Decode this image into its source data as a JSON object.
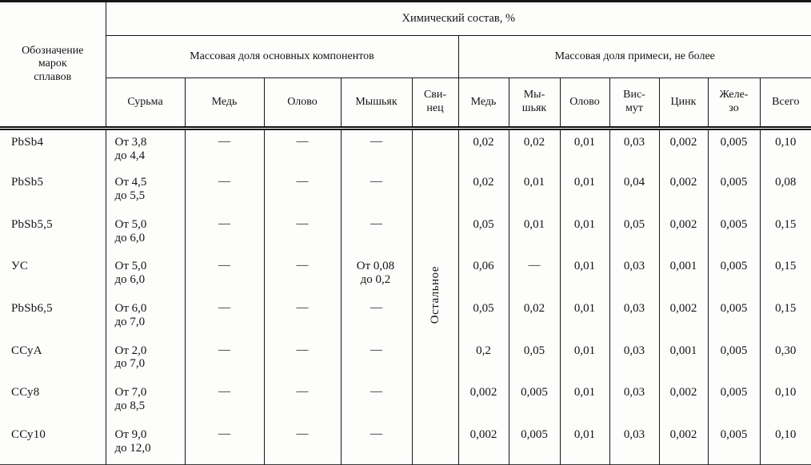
{
  "header": {
    "stub": "Обозначение\nмарок\nсплавов",
    "chem_title": "Химический состав, %",
    "group_main": "Массовая доля основных компонентов",
    "group_impurity": "Массовая доля примеси, не более",
    "cols_main": [
      "Сурьма",
      "Медь",
      "Олово",
      "Мышьяк",
      "Сви-\nнец"
    ],
    "cols_impurity": [
      "Медь",
      "Мы-\nшьяк",
      "Олово",
      "Вис-\nмут",
      "Цинк",
      "Желе-\nзо",
      "Всего"
    ]
  },
  "lead_remainder": "Остальное",
  "rows": [
    {
      "grade": "PbSb4",
      "antimony": "От 3,8\nдо 4,4",
      "copper": "—",
      "tin": "—",
      "arsenic": "—",
      "imp": [
        "0,02",
        "0,02",
        "0,01",
        "0,03",
        "0,002",
        "0,005",
        "0,10"
      ]
    },
    {
      "grade": "PbSb5",
      "antimony": "От 4,5\nдо 5,5",
      "copper": "—",
      "tin": "—",
      "arsenic": "—",
      "imp": [
        "0,02",
        "0,01",
        "0,01",
        "0,04",
        "0,002",
        "0,005",
        "0,08"
      ]
    },
    {
      "grade": "PbSb5,5",
      "antimony": "От 5,0\nдо 6,0",
      "copper": "—",
      "tin": "—",
      "arsenic": "—",
      "imp": [
        "0,05",
        "0,01",
        "0,01",
        "0,05",
        "0,002",
        "0,005",
        "0,15"
      ]
    },
    {
      "grade": "УС",
      "antimony": "От 5,0\nдо 6,0",
      "copper": "—",
      "tin": "—",
      "arsenic": "От 0,08\nдо 0,2",
      "imp": [
        "0,06",
        "—",
        "0,01",
        "0,03",
        "0,001",
        "0,005",
        "0,15"
      ]
    },
    {
      "grade": "PbSb6,5",
      "antimony": "От 6,0\nдо 7,0",
      "copper": "—",
      "tin": "—",
      "arsenic": "—",
      "imp": [
        "0,05",
        "0,02",
        "0,01",
        "0,03",
        "0,002",
        "0,005",
        "0,15"
      ]
    },
    {
      "grade": "ССуА",
      "antimony": "От 2,0\nдо 7,0",
      "copper": "—",
      "tin": "—",
      "arsenic": "—",
      "imp": [
        "0,2",
        "0,05",
        "0,01",
        "0,03",
        "0,001",
        "0,005",
        "0,30"
      ]
    },
    {
      "grade": "ССу8",
      "antimony": "От 7,0\nдо 8,5",
      "copper": "—",
      "tin": "—",
      "arsenic": "—",
      "imp": [
        "0,002",
        "0,005",
        "0,01",
        "0,03",
        "0,002",
        "0,005",
        "0,10"
      ]
    },
    {
      "grade": "ССу10",
      "antimony": "От 9,0\nдо 12,0",
      "copper": "—",
      "tin": "—",
      "arsenic": "—",
      "imp": [
        "0,002",
        "0,005",
        "0,01",
        "0,03",
        "0,002",
        "0,005",
        "0,10"
      ]
    }
  ]
}
